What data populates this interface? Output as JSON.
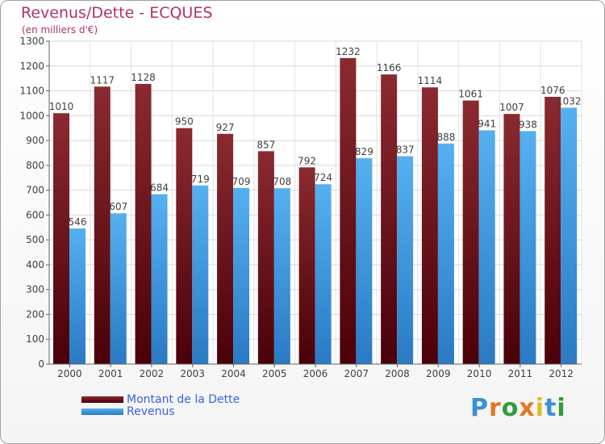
{
  "header": {
    "title": "Revenus/Dette - ECQUES",
    "subtitle": "(en milliers d'€)"
  },
  "logo": {
    "parts": [
      "P",
      "r",
      "o",
      "x",
      "i",
      "t",
      "i"
    ]
  },
  "colors": {
    "dette": "#7a1e24",
    "revenus": "#3f9fe6",
    "title": "#b0306a",
    "legend_text": "#4060e0"
  },
  "chart_data": {
    "type": "bar",
    "title": "Revenus/Dette - ECQUES",
    "subtitle": "(en milliers d'€)",
    "categories": [
      "2000",
      "2001",
      "2002",
      "2003",
      "2004",
      "2005",
      "2006",
      "2007",
      "2008",
      "2009",
      "2010",
      "2011",
      "2012"
    ],
    "series": [
      {
        "name": "Montant de la Dette",
        "color": "#7a1e24",
        "values": [
          1010,
          1117,
          1128,
          950,
          927,
          857,
          792,
          1232,
          1166,
          1114,
          1061,
          1007,
          1076
        ]
      },
      {
        "name": "Revenus",
        "color": "#3f9fe6",
        "values": [
          546,
          607,
          684,
          719,
          709,
          708,
          724,
          829,
          837,
          888,
          941,
          938,
          1032
        ]
      }
    ],
    "ylim": [
      0,
      1300
    ],
    "yticks": [
      0,
      100,
      200,
      300,
      400,
      500,
      600,
      700,
      800,
      900,
      1000,
      1100,
      1200,
      1300
    ],
    "grid": true,
    "legend_position": "bottom-left"
  }
}
